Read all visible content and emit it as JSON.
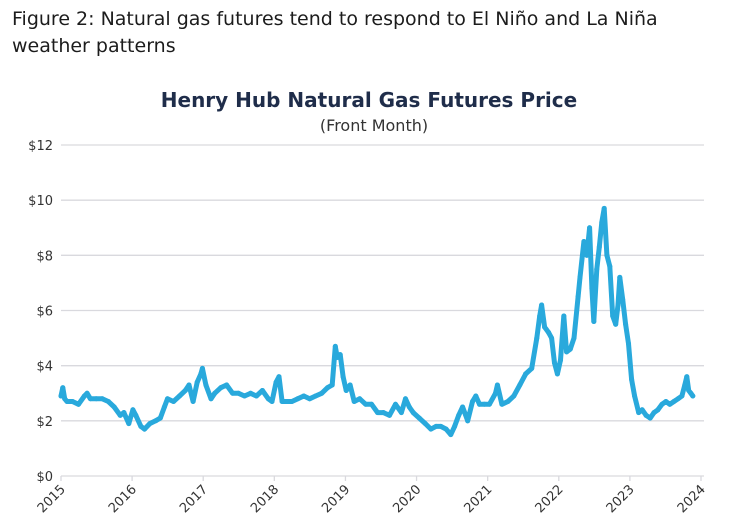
{
  "figure_caption": "Figure 2: Natural gas futures tend to respond to El Niño and La Niña weather patterns",
  "chart_data": {
    "type": "line",
    "title": "Henry Hub Natural Gas Futures Price",
    "subtitle": "(Front Month)",
    "xlabel": "",
    "ylabel": "",
    "x_tick_labels": [
      "2015",
      "2016",
      "2017",
      "2018",
      "2019",
      "2020",
      "2021",
      "2022",
      "2023",
      "2024"
    ],
    "y_tick_labels": [
      "$0",
      "$2",
      "$4",
      "$6",
      "$8",
      "$10",
      "$12"
    ],
    "y_ticks": [
      0,
      2,
      4,
      6,
      8,
      10,
      12
    ],
    "xlim": [
      "2015-01-01",
      "2024-01-01"
    ],
    "ylim": [
      0,
      12
    ],
    "grid": "horizontal",
    "line_color": "#29a9dc",
    "series": [
      {
        "x": [
          "2015-01-01",
          "2015-01-10",
          "2015-01-20",
          "2015-02-01",
          "2015-03-01",
          "2015-04-01",
          "2015-05-01",
          "2015-05-15",
          "2015-06-01",
          "2015-07-01",
          "2015-08-01",
          "2015-09-01",
          "2015-10-01",
          "2015-11-01",
          "2015-11-20",
          "2015-12-15",
          "2016-01-05",
          "2016-01-20",
          "2016-02-15",
          "2016-03-05",
          "2016-04-01",
          "2016-05-01",
          "2016-05-25",
          "2016-06-15",
          "2016-07-01",
          "2016-08-01",
          "2016-09-01",
          "2016-10-01",
          "2016-10-20",
          "2016-11-10",
          "2016-12-01",
          "2016-12-20",
          "2016-12-28",
          "2017-01-15",
          "2017-02-10",
          "2017-03-01",
          "2017-04-01",
          "2017-05-01",
          "2017-06-01",
          "2017-07-01",
          "2017-08-01",
          "2017-09-01",
          "2017-10-01",
          "2017-11-01",
          "2017-12-01",
          "2017-12-20",
          "2018-01-10",
          "2018-01-25",
          "2018-02-10",
          "2018-03-01",
          "2018-04-01",
          "2018-05-01",
          "2018-06-01",
          "2018-07-01",
          "2018-08-01",
          "2018-09-01",
          "2018-10-01",
          "2018-10-25",
          "2018-11-10",
          "2018-11-20",
          "2018-12-05",
          "2018-12-20",
          "2019-01-05",
          "2019-01-25",
          "2019-02-15",
          "2019-03-15",
          "2019-04-15",
          "2019-05-15",
          "2019-06-15",
          "2019-07-15",
          "2019-08-15",
          "2019-09-15",
          "2019-10-15",
          "2019-11-05",
          "2019-11-25",
          "2019-12-15",
          "2020-01-15",
          "2020-02-15",
          "2020-03-15",
          "2020-04-10",
          "2020-05-05",
          "2020-06-01",
          "2020-06-25",
          "2020-07-15",
          "2020-08-05",
          "2020-08-25",
          "2020-09-20",
          "2020-10-15",
          "2020-11-01",
          "2020-11-20",
          "2020-12-15",
          "2021-01-10",
          "2021-02-10",
          "2021-02-20",
          "2021-03-15",
          "2021-04-15",
          "2021-05-15",
          "2021-06-15",
          "2021-07-15",
          "2021-08-15",
          "2021-09-10",
          "2021-09-25",
          "2021-10-05",
          "2021-10-20",
          "2021-11-10",
          "2021-11-25",
          "2021-12-10",
          "2021-12-25",
          "2022-01-10",
          "2022-01-27",
          "2022-02-10",
          "2022-03-01",
          "2022-03-20",
          "2022-04-10",
          "2022-04-20",
          "2022-05-10",
          "2022-05-25",
          "2022-06-08",
          "2022-06-20",
          "2022-06-30",
          "2022-07-15",
          "2022-07-28",
          "2022-08-10",
          "2022-08-22",
          "2022-09-05",
          "2022-09-20",
          "2022-10-05",
          "2022-10-20",
          "2022-11-01",
          "2022-11-10",
          "2022-11-25",
          "2022-12-10",
          "2022-12-25",
          "2023-01-10",
          "2023-01-25",
          "2023-02-15",
          "2023-03-05",
          "2023-03-25",
          "2023-04-15",
          "2023-05-05",
          "2023-05-25",
          "2023-06-15",
          "2023-07-05",
          "2023-07-25",
          "2023-08-15",
          "2023-09-05",
          "2023-09-25",
          "2023-10-10",
          "2023-10-20",
          "2023-10-30",
          "2023-11-10",
          "2023-11-20"
        ],
        "y": [
          2.9,
          3.2,
          2.8,
          2.7,
          2.7,
          2.6,
          2.9,
          3.0,
          2.8,
          2.8,
          2.8,
          2.7,
          2.5,
          2.2,
          2.3,
          1.9,
          2.4,
          2.2,
          1.8,
          1.7,
          1.9,
          2.0,
          2.1,
          2.5,
          2.8,
          2.7,
          2.9,
          3.1,
          3.3,
          2.7,
          3.4,
          3.7,
          3.9,
          3.3,
          2.8,
          3.0,
          3.2,
          3.3,
          3.0,
          3.0,
          2.9,
          3.0,
          2.9,
          3.1,
          2.8,
          2.7,
          3.4,
          3.6,
          2.7,
          2.7,
          2.7,
          2.8,
          2.9,
          2.8,
          2.9,
          3.0,
          3.2,
          3.3,
          4.7,
          4.3,
          4.4,
          3.6,
          3.1,
          3.3,
          2.7,
          2.8,
          2.6,
          2.6,
          2.3,
          2.3,
          2.2,
          2.6,
          2.3,
          2.8,
          2.5,
          2.3,
          2.1,
          1.9,
          1.7,
          1.8,
          1.8,
          1.7,
          1.5,
          1.8,
          2.2,
          2.5,
          2.0,
          2.7,
          2.9,
          2.6,
          2.6,
          2.6,
          3.0,
          3.3,
          2.6,
          2.7,
          2.9,
          3.3,
          3.7,
          3.9,
          5.0,
          5.8,
          6.2,
          5.4,
          5.2,
          5.0,
          4.1,
          3.7,
          4.2,
          5.8,
          4.5,
          4.6,
          5.0,
          6.5,
          7.2,
          8.5,
          8.0,
          9.0,
          6.8,
          5.6,
          7.5,
          8.3,
          9.2,
          9.7,
          8.0,
          7.6,
          5.8,
          5.5,
          6.2,
          7.2,
          6.4,
          5.5,
          4.8,
          3.5,
          2.9,
          2.3,
          2.4,
          2.2,
          2.1,
          2.3,
          2.4,
          2.6,
          2.7,
          2.6,
          2.7,
          2.8,
          2.9,
          3.3,
          3.6,
          3.1,
          3.0,
          2.9
        ]
      }
    ]
  }
}
